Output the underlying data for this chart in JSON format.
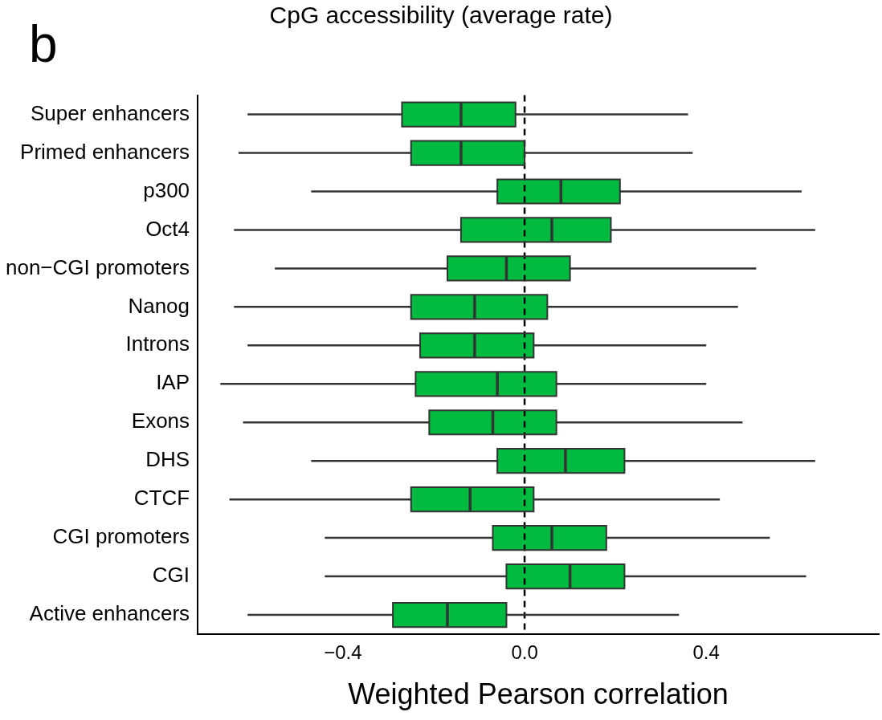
{
  "chart_data": {
    "type": "box",
    "title": "CpG accessibility  (average rate)",
    "annotations": [
      "b"
    ],
    "xlabel": "Weighted Pearson correlation",
    "orientation": "horizontal",
    "color": "#00bb3f",
    "categories": [
      "Super enhancers",
      "Primed enhancers",
      "p300",
      "Oct4",
      "non−CGI promoters",
      "Nanog",
      "Introns",
      "IAP",
      "Exons",
      "DHS",
      "CTCF",
      "CGI promoters",
      "CGI",
      "Active enhancers"
    ],
    "boxes": [
      {
        "low": -0.61,
        "q1": -0.27,
        "median": -0.14,
        "q3": -0.02,
        "high": 0.36
      },
      {
        "low": -0.63,
        "q1": -0.25,
        "median": -0.14,
        "q3": 0.0,
        "high": 0.37
      },
      {
        "low": -0.47,
        "q1": -0.06,
        "median": 0.08,
        "q3": 0.21,
        "high": 0.61
      },
      {
        "low": -0.64,
        "q1": -0.14,
        "median": 0.06,
        "q3": 0.19,
        "high": 0.64
      },
      {
        "low": -0.55,
        "q1": -0.17,
        "median": -0.04,
        "q3": 0.1,
        "high": 0.51
      },
      {
        "low": -0.64,
        "q1": -0.25,
        "median": -0.11,
        "q3": 0.05,
        "high": 0.47
      },
      {
        "low": -0.61,
        "q1": -0.23,
        "median": -0.11,
        "q3": 0.02,
        "high": 0.4
      },
      {
        "low": -0.67,
        "q1": -0.24,
        "median": -0.06,
        "q3": 0.07,
        "high": 0.4
      },
      {
        "low": -0.62,
        "q1": -0.21,
        "median": -0.07,
        "q3": 0.07,
        "high": 0.48
      },
      {
        "low": -0.47,
        "q1": -0.06,
        "median": 0.09,
        "q3": 0.22,
        "high": 0.64
      },
      {
        "low": -0.65,
        "q1": -0.25,
        "median": -0.12,
        "q3": 0.02,
        "high": 0.43
      },
      {
        "low": -0.44,
        "q1": -0.07,
        "median": 0.06,
        "q3": 0.18,
        "high": 0.54
      },
      {
        "low": -0.44,
        "q1": -0.04,
        "median": 0.1,
        "q3": 0.22,
        "high": 0.62
      },
      {
        "low": -0.61,
        "q1": -0.29,
        "median": -0.17,
        "q3": -0.04,
        "high": 0.34
      }
    ],
    "xlim": [
      -0.72,
      0.78
    ],
    "xticks": [
      {
        "value": -0.4,
        "label": "−0.4"
      },
      {
        "value": 0,
        "label": "0.0"
      },
      {
        "value": 0.4,
        "label": "0.4"
      }
    ],
    "ref_lines": [
      {
        "axis": "x",
        "value": 0,
        "line_style": "dashed"
      }
    ]
  }
}
